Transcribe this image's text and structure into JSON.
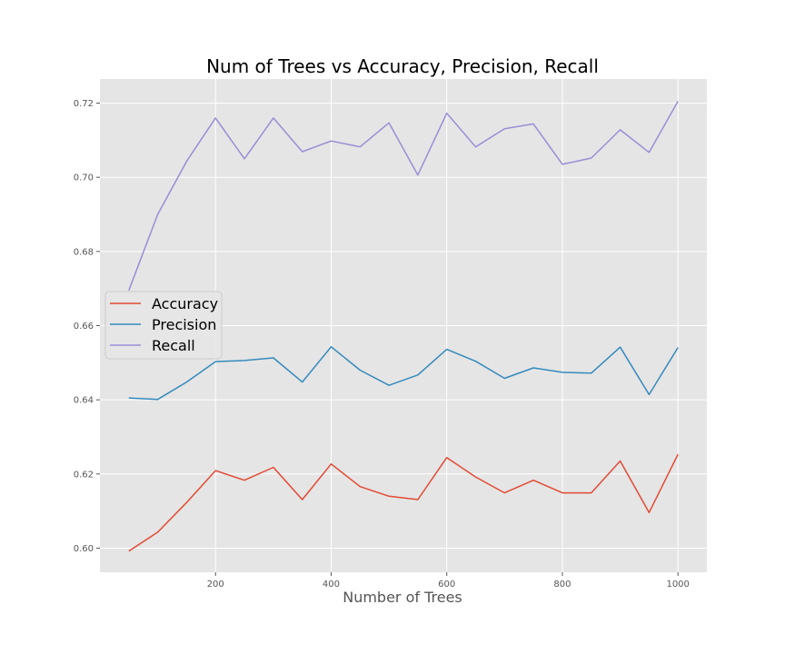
{
  "chart_data": {
    "type": "line",
    "title": "Num of Trees vs Accuracy, Precision, Recall",
    "xlabel": "Number of Trees",
    "ylabel": "",
    "x": [
      50,
      100,
      150,
      200,
      250,
      300,
      350,
      400,
      450,
      500,
      550,
      600,
      650,
      700,
      750,
      800,
      850,
      900,
      950,
      1000
    ],
    "xlim": [
      0,
      1050
    ],
    "ylim": [
      0.5935,
      0.7265
    ],
    "xticks": [
      200,
      400,
      600,
      800,
      1000
    ],
    "xtick_labels": [
      "200",
      "400",
      "600",
      "800",
      "1000"
    ],
    "yticks": [
      0.6,
      0.62,
      0.64,
      0.66,
      0.68,
      0.7,
      0.72
    ],
    "ytick_labels": [
      "0.60",
      "0.62",
      "0.64",
      "0.66",
      "0.68",
      "0.70",
      "0.72"
    ],
    "grid": true,
    "legend_position": "center-left",
    "background_color": "#e5e5e5",
    "grid_color": "#ffffff",
    "series": [
      {
        "name": "Accuracy",
        "color": "#e24a33",
        "values": [
          0.5992,
          0.6043,
          0.6123,
          0.6209,
          0.6183,
          0.6218,
          0.6131,
          0.6227,
          0.6166,
          0.614,
          0.6131,
          0.6244,
          0.6192,
          0.6149,
          0.6183,
          0.6149,
          0.6149,
          0.6235,
          0.6096,
          0.6253
        ]
      },
      {
        "name": "Precision",
        "color": "#348abd",
        "values": [
          0.6405,
          0.6401,
          0.6448,
          0.6503,
          0.6506,
          0.6513,
          0.6448,
          0.6543,
          0.648,
          0.6439,
          0.6467,
          0.6536,
          0.6504,
          0.6458,
          0.6486,
          0.6474,
          0.6472,
          0.6542,
          0.6414,
          0.6541
        ]
      },
      {
        "name": "Recall",
        "color": "#988ed5",
        "values": [
          0.6695,
          0.69,
          0.7043,
          0.716,
          0.705,
          0.716,
          0.7069,
          0.7098,
          0.7082,
          0.7147,
          0.7006,
          0.7173,
          0.7082,
          0.7131,
          0.7144,
          0.7035,
          0.7052,
          0.7128,
          0.7067,
          0.7205
        ]
      }
    ]
  }
}
